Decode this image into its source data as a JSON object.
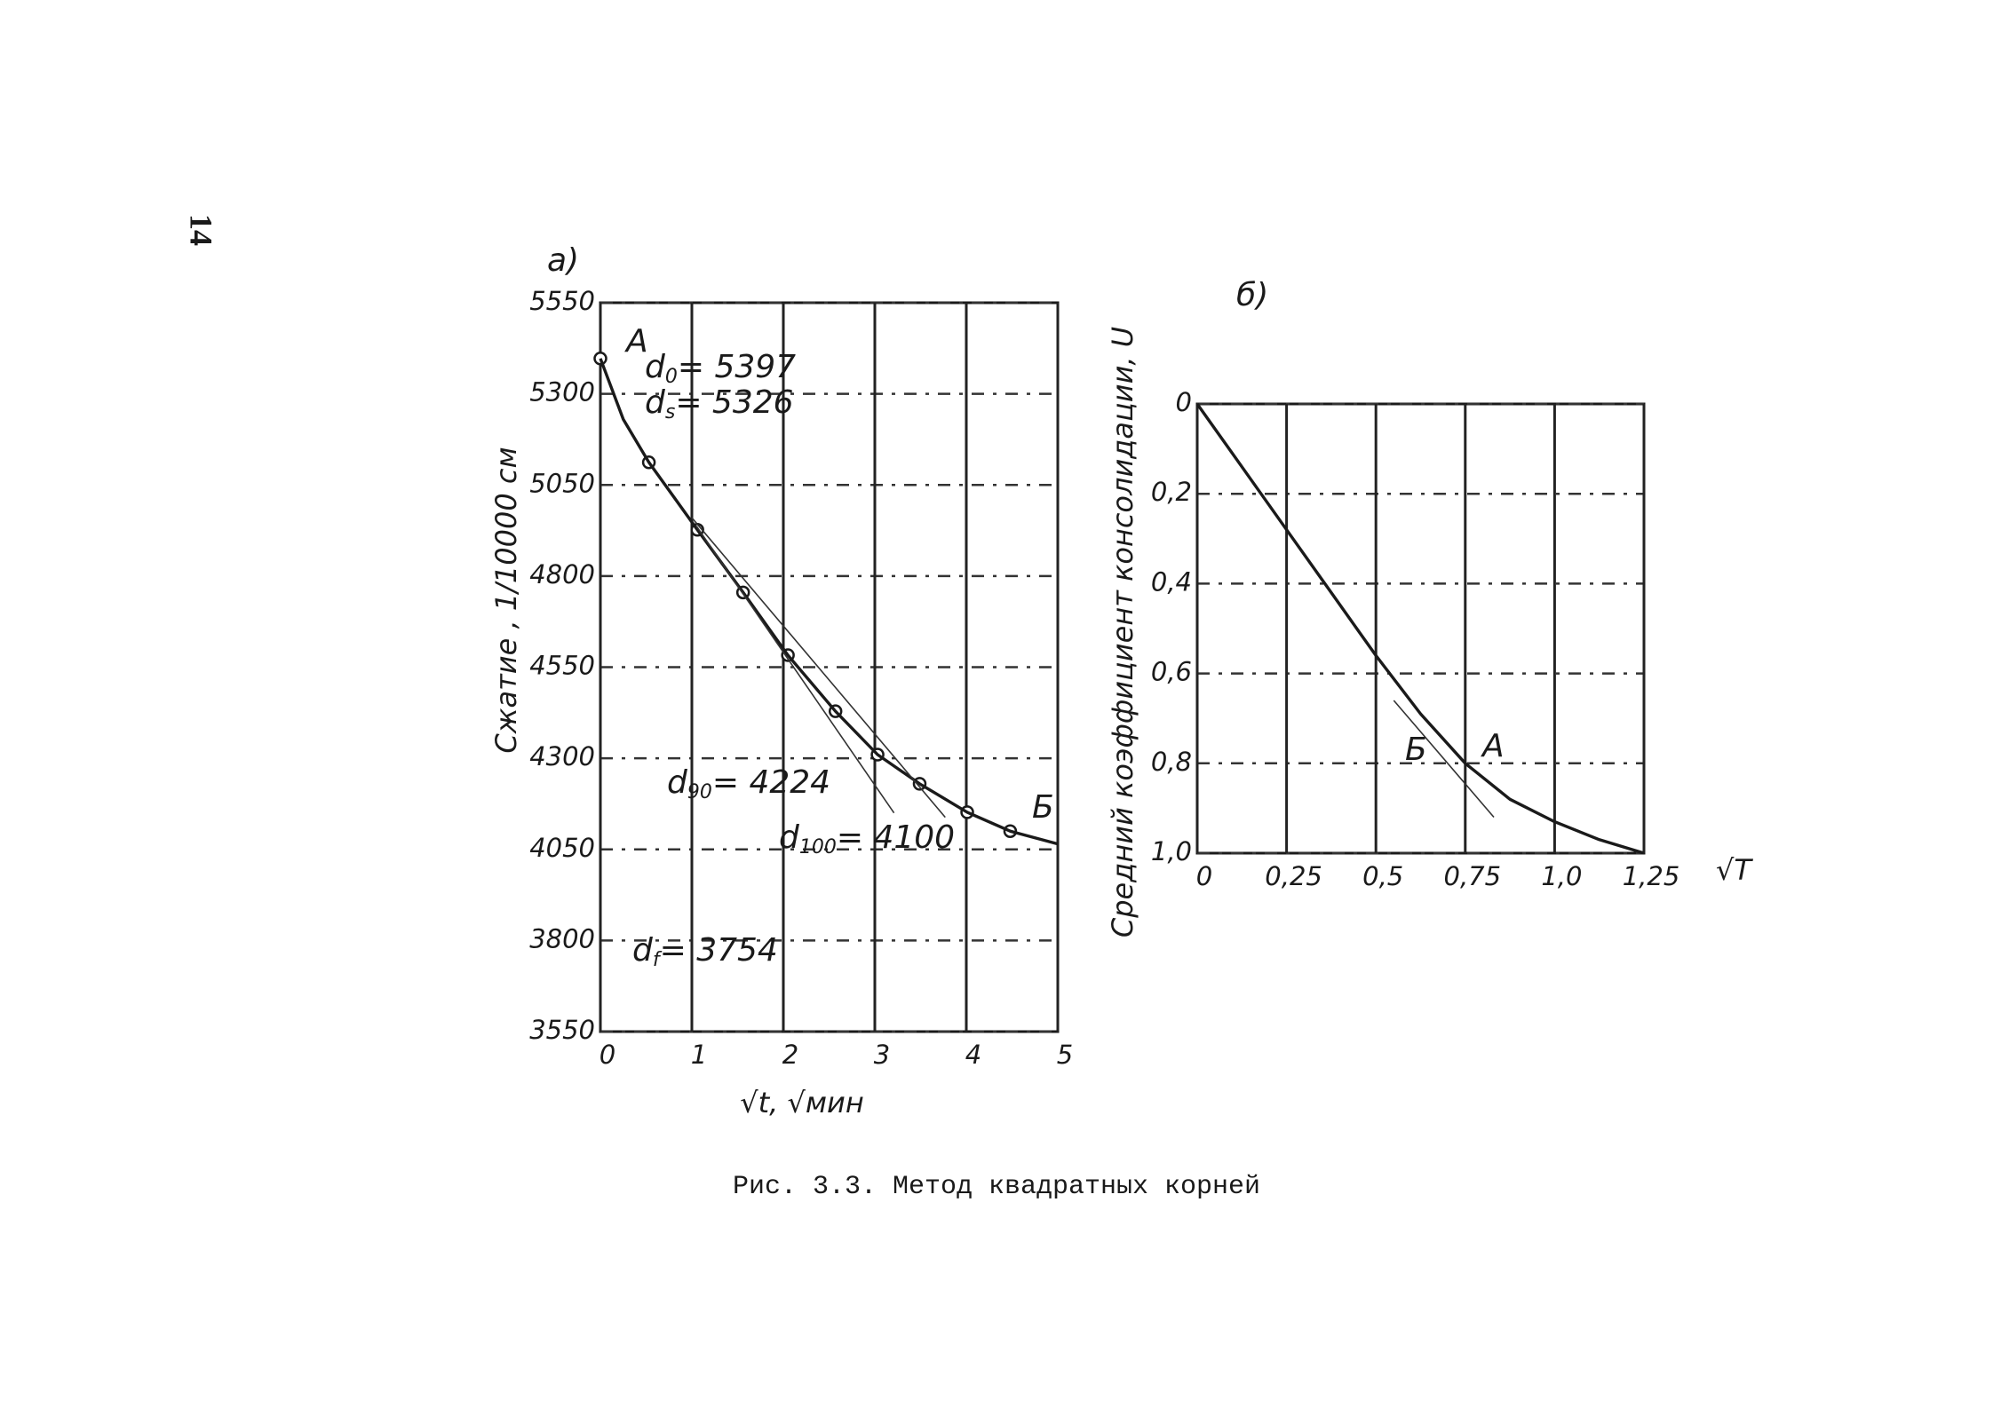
{
  "page_number": "14",
  "caption": "Рис. 3.3. Метод квадратных корней",
  "chart_data": [
    {
      "type": "line",
      "panel_label": "а)",
      "y_label": "Сжатие ,  1/10000 см",
      "x_label": "√t, √мин",
      "xlim": [
        0,
        5
      ],
      "ylim": [
        3550,
        5550
      ],
      "xticks": [
        0,
        1,
        2,
        3,
        4,
        5
      ],
      "yticks": [
        3550,
        3800,
        4050,
        4300,
        4550,
        4800,
        5050,
        5300,
        5550
      ],
      "grid": true,
      "series": [
        {
          "color": "#1a1a1a",
          "markers": true,
          "line": false,
          "x": [
            0,
            0.53,
            1.06,
            1.56,
            2.05,
            2.57,
            3.03,
            3.49,
            4.01,
            4.48
          ],
          "values": [
            5397,
            5112,
            4927,
            4755,
            4583,
            4429,
            4310,
            4230,
            4152,
            4100
          ]
        },
        {
          "color": "#1a1a1a",
          "markers": false,
          "line": true,
          "x": [
            0,
            0.25,
            0.53,
            1.06,
            1.56,
            2.05,
            2.57,
            3.03,
            3.49,
            4.01,
            4.48,
            5
          ],
          "values": [
            5397,
            5230,
            5112,
            4927,
            4755,
            4583,
            4429,
            4310,
            4230,
            4152,
            4100,
            4065
          ]
        },
        {
          "color": "#333333",
          "markers": false,
          "line": true,
          "thin": true,
          "x": [
            1,
            3.77
          ],
          "values": [
            4960,
            4138
          ]
        },
        {
          "color": "#333333",
          "markers": false,
          "line": true,
          "thin": true,
          "x": [
            1.05,
            3.21
          ],
          "values": [
            4937,
            4150
          ]
        }
      ],
      "annotations": [
        {
          "text": "А"
        },
        {
          "symbol": "d",
          "subscript": "0",
          "rest": "= 5397"
        },
        {
          "symbol": "d",
          "subscript": "s",
          "rest": "= 5326"
        },
        {
          "symbol": "d",
          "subscript": "90",
          "rest": "= 4224"
        },
        {
          "symbol": "d",
          "subscript": "100",
          "rest": "= 4100"
        },
        {
          "text": "Б"
        },
        {
          "symbol": "d",
          "subscript": "f",
          "rest": "= 3754"
        }
      ]
    },
    {
      "type": "line",
      "panel_label": "б)",
      "y_label": "Средний коэффициент консолидации, U",
      "x_label": "√T",
      "xlim": [
        0,
        1.25
      ],
      "ylim": [
        0,
        1.0
      ],
      "y_inverted": true,
      "xticks": [
        0,
        {
          "value": 0.25,
          "label": "0,25"
        },
        {
          "value": 0.5,
          "label": "0,5"
        },
        {
          "value": 0.75,
          "label": "0,75"
        },
        {
          "value": 1.0,
          "label": "1,0"
        },
        {
          "value": 1.25,
          "label": "1,25"
        }
      ],
      "yticks": [
        0,
        {
          "value": 0.2,
          "label": "0,2"
        },
        {
          "value": 0.4,
          "label": "0,4"
        },
        {
          "value": 0.6,
          "label": "0,6"
        },
        {
          "value": 0.8,
          "label": "0,8"
        },
        {
          "value": 1.0,
          "label": "1,0"
        }
      ],
      "grid": true,
      "series": [
        {
          "color": "#1a1a1a",
          "markers": false,
          "line": true,
          "x": [
            0,
            0.125,
            0.25,
            0.375,
            0.5,
            0.625,
            0.75,
            0.875,
            1.0,
            1.125,
            1.25
          ],
          "values": [
            0,
            0.14,
            0.28,
            0.42,
            0.56,
            0.69,
            0.8,
            0.88,
            0.93,
            0.97,
            1.0
          ]
        },
        {
          "color": "#333333",
          "markers": false,
          "line": true,
          "thin": true,
          "x": [
            0.55,
            0.83
          ],
          "values": [
            0.66,
            0.92
          ]
        }
      ],
      "annotations": [
        {
          "text": "Б"
        },
        {
          "text": "А"
        }
      ]
    }
  ]
}
